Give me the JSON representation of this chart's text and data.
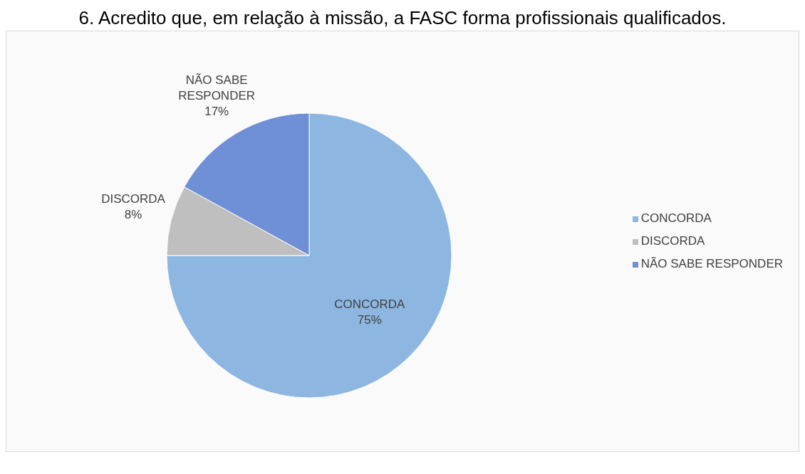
{
  "chart_data": {
    "type": "pie",
    "title": "6. Acredito que, em relação à missão, a FASC forma profissionais qualificados.",
    "categories": [
      "CONCORDA",
      "DISCORDA",
      "NÃO SABE RESPONDER"
    ],
    "values": [
      75,
      8,
      17
    ],
    "value_labels": [
      "75%",
      "8%",
      "17%"
    ],
    "colors": [
      "#8db6e0",
      "#bfbfbf",
      "#6f8fd6"
    ],
    "legend": "right"
  }
}
